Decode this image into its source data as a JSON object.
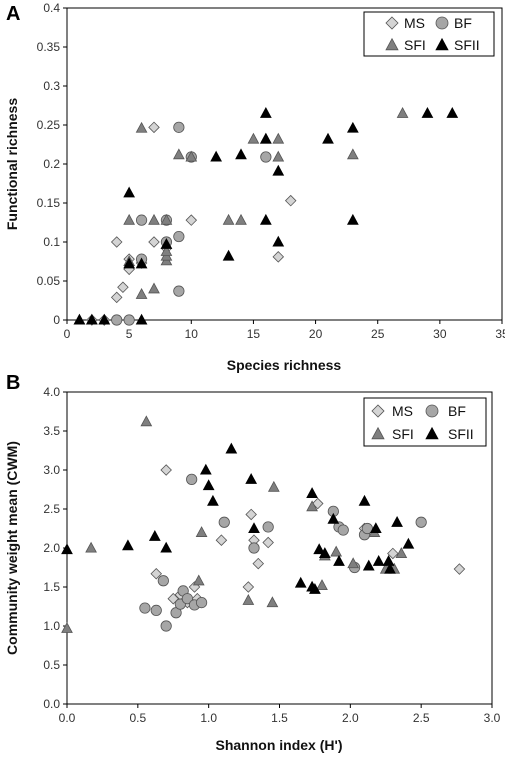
{
  "chart_data": [
    {
      "panel": "A",
      "type": "scatter",
      "xlabel": "Species richness",
      "ylabel": "Functional richness",
      "xlim": [
        0,
        35
      ],
      "ylim": [
        0,
        0.4
      ],
      "xticks": [
        "0",
        "5",
        "10",
        "15",
        "20",
        "25",
        "30",
        "35"
      ],
      "yticks": [
        "0",
        "0.05",
        "0.1",
        "0.15",
        "0.2",
        "0.25",
        "0.3",
        "0.35",
        "0.4"
      ],
      "grid": false,
      "legend_position": "top-right",
      "series": [
        {
          "name": "MS",
          "marker": "diamond",
          "color": "#d4d4d4",
          "points": [
            [
              2,
              0
            ],
            [
              3,
              0
            ],
            [
              3,
              0
            ],
            [
              4,
              0.029
            ],
            [
              4,
              0.1
            ],
            [
              4.5,
              0.042
            ],
            [
              5,
              0.078
            ],
            [
              5,
              0.065
            ],
            [
              6,
              0.073
            ],
            [
              7,
              0.1
            ],
            [
              7,
              0.247
            ],
            [
              8,
              0.092
            ],
            [
              10,
              0.128
            ],
            [
              17,
              0.081
            ],
            [
              18,
              0.153
            ]
          ]
        },
        {
          "name": "BF",
          "marker": "circle",
          "color": "#a6a6a6",
          "points": [
            [
              4,
              0
            ],
            [
              5,
              0
            ],
            [
              6,
              0.078
            ],
            [
              6,
              0.128
            ],
            [
              8,
              0.1
            ],
            [
              8,
              0.128
            ],
            [
              9,
              0.037
            ],
            [
              9,
              0.107
            ],
            [
              9,
              0.247
            ],
            [
              10,
              0.209
            ],
            [
              16,
              0.209
            ]
          ]
        },
        {
          "name": "SFI",
          "marker": "triangle",
          "color": "#7f7f7f",
          "points": [
            [
              1,
              0
            ],
            [
              2,
              0
            ],
            [
              3,
              0
            ],
            [
              5,
              0.075
            ],
            [
              5,
              0.128
            ],
            [
              6,
              0.033
            ],
            [
              6,
              0.246
            ],
            [
              7,
              0.04
            ],
            [
              7,
              0.128
            ],
            [
              8,
              0.076
            ],
            [
              8,
              0.082
            ],
            [
              8,
              0.088
            ],
            [
              8,
              0.128
            ],
            [
              9,
              0.212
            ],
            [
              10,
              0.209
            ],
            [
              13,
              0.128
            ],
            [
              14,
              0.128
            ],
            [
              15,
              0.232
            ],
            [
              16,
              0.232
            ],
            [
              17,
              0.232
            ],
            [
              17,
              0.209
            ],
            [
              23,
              0.212
            ],
            [
              27,
              0.265
            ]
          ]
        },
        {
          "name": "SFII",
          "marker": "triangle",
          "color": "#000000",
          "points": [
            [
              1,
              0
            ],
            [
              2,
              0
            ],
            [
              3,
              0
            ],
            [
              5,
              0.163
            ],
            [
              5,
              0.072
            ],
            [
              6,
              0.072
            ],
            [
              6,
              0
            ],
            [
              8,
              0.097
            ],
            [
              12,
              0.209
            ],
            [
              13,
              0.082
            ],
            [
              14,
              0.212
            ],
            [
              16,
              0.232
            ],
            [
              16,
              0.265
            ],
            [
              16,
              0.128
            ],
            [
              17,
              0.191
            ],
            [
              17,
              0.1
            ],
            [
              21,
              0.232
            ],
            [
              23,
              0.246
            ],
            [
              23,
              0.128
            ],
            [
              29,
              0.265
            ],
            [
              31,
              0.265
            ]
          ]
        }
      ]
    },
    {
      "panel": "B",
      "type": "scatter",
      "xlabel": "Shannon index (H')",
      "ylabel": "Community weight mean (CWM)",
      "xlim": [
        0,
        3
      ],
      "ylim": [
        0,
        4
      ],
      "xticks": [
        "0.0",
        "0.5",
        "1.0",
        "1.5",
        "2.0",
        "2.5",
        "3.0"
      ],
      "yticks": [
        "0.0",
        "0.5",
        "1.0",
        "1.5",
        "2.0",
        "2.5",
        "3.0",
        "3.5",
        "4.0"
      ],
      "grid": false,
      "legend_position": "top-right",
      "series": [
        {
          "name": "MS",
          "marker": "diamond",
          "color": "#d4d4d4",
          "points": [
            [
              0.63,
              1.67
            ],
            [
              0.7,
              3.0
            ],
            [
              0.75,
              1.35
            ],
            [
              0.8,
              1.4
            ],
            [
              0.85,
              1.3
            ],
            [
              0.9,
              1.5
            ],
            [
              0.92,
              1.35
            ],
            [
              1.09,
              2.1
            ],
            [
              1.28,
              1.5
            ],
            [
              1.3,
              2.43
            ],
            [
              1.32,
              2.1
            ],
            [
              1.35,
              1.8
            ],
            [
              1.42,
              2.07
            ],
            [
              1.77,
              2.57
            ],
            [
              2.1,
              2.25
            ],
            [
              2.3,
              1.93
            ],
            [
              2.77,
              1.73
            ]
          ]
        },
        {
          "name": "BF",
          "marker": "circle",
          "color": "#a6a6a6",
          "points": [
            [
              0.55,
              1.23
            ],
            [
              0.63,
              1.2
            ],
            [
              0.68,
              1.58
            ],
            [
              0.7,
              1.0
            ],
            [
              0.77,
              1.17
            ],
            [
              0.8,
              1.28
            ],
            [
              0.82,
              1.45
            ],
            [
              0.85,
              1.35
            ],
            [
              0.88,
              2.88
            ],
            [
              0.9,
              1.27
            ],
            [
              0.95,
              1.3
            ],
            [
              1.11,
              2.33
            ],
            [
              1.32,
              2.0
            ],
            [
              1.42,
              2.27
            ],
            [
              1.88,
              2.47
            ],
            [
              1.92,
              2.27
            ],
            [
              1.95,
              2.23
            ],
            [
              2.03,
              1.75
            ],
            [
              2.1,
              2.17
            ],
            [
              2.12,
              2.25
            ],
            [
              2.5,
              2.33
            ]
          ]
        },
        {
          "name": "SFI",
          "marker": "triangle",
          "color": "#7f7f7f",
          "points": [
            [
              0.0,
              0.97
            ],
            [
              0.17,
              2.0
            ],
            [
              0.56,
              3.62
            ],
            [
              0.93,
              1.58
            ],
            [
              0.95,
              2.2
            ],
            [
              1.28,
              1.33
            ],
            [
              1.45,
              1.3
            ],
            [
              1.46,
              2.78
            ],
            [
              1.73,
              2.53
            ],
            [
              1.8,
              1.52
            ],
            [
              1.82,
              1.9
            ],
            [
              1.9,
              1.95
            ],
            [
              2.02,
              1.8
            ],
            [
              2.17,
              2.2
            ],
            [
              2.25,
              1.73
            ],
            [
              2.31,
              1.73
            ],
            [
              2.36,
              1.93
            ]
          ]
        },
        {
          "name": "SFII",
          "marker": "triangle",
          "color": "#000000",
          "points": [
            [
              0.0,
              1.98
            ],
            [
              0.43,
              2.03
            ],
            [
              0.62,
              2.15
            ],
            [
              0.7,
              2.0
            ],
            [
              0.98,
              3.0
            ],
            [
              1.0,
              2.8
            ],
            [
              1.03,
              2.6
            ],
            [
              1.16,
              3.27
            ],
            [
              1.3,
              2.88
            ],
            [
              1.32,
              2.25
            ],
            [
              1.65,
              1.55
            ],
            [
              1.73,
              1.5
            ],
            [
              1.75,
              1.47
            ],
            [
              1.73,
              2.7
            ],
            [
              1.78,
              1.98
            ],
            [
              1.82,
              1.93
            ],
            [
              1.88,
              2.37
            ],
            [
              1.92,
              1.83
            ],
            [
              2.1,
              2.6
            ],
            [
              2.13,
              1.77
            ],
            [
              2.18,
              2.25
            ],
            [
              2.2,
              1.83
            ],
            [
              2.28,
              1.73
            ],
            [
              2.27,
              1.83
            ],
            [
              2.33,
              2.33
            ],
            [
              2.41,
              2.05
            ]
          ]
        }
      ]
    }
  ]
}
